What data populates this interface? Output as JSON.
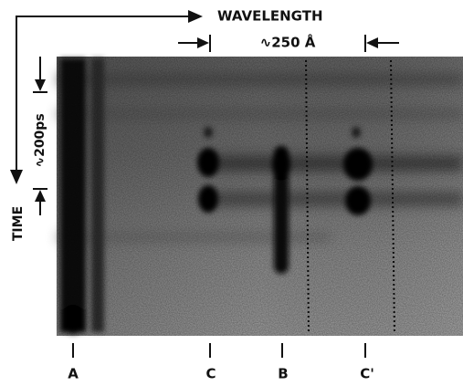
{
  "figure": {
    "x_label": "WAVELENGTH",
    "x_scale": "∿250 Å",
    "y_label": "TIME",
    "y_scale": "∿200ps",
    "lines": [
      {
        "label": "A"
      },
      {
        "label": "C"
      },
      {
        "label": "B"
      },
      {
        "label": "C'"
      }
    ]
  }
}
